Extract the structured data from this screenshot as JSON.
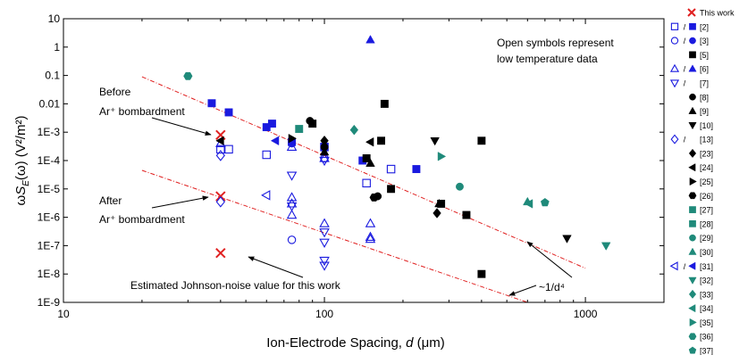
{
  "colors": {
    "blue": "#1a1adf",
    "black": "#000000",
    "teal": "#1f8a7a",
    "red": "#e02020",
    "line": "#e02020"
  },
  "chart_data": {
    "type": "scatter",
    "xlabel": "Ion-Electrode Spacing, d (μm)",
    "ylabel": "ωS_E(ω) (V²/m²)",
    "x_scale": "log",
    "y_scale": "log",
    "xlim": [
      10,
      2000
    ],
    "ylim": [
      1e-09,
      10
    ],
    "x_ticks": [
      10,
      100,
      1000
    ],
    "x_tick_labels": [
      "10",
      "100",
      "1000"
    ],
    "y_ticks": [
      1e-09,
      1e-08,
      1e-07,
      1e-06,
      1e-05,
      0.0001,
      0.001,
      0.01,
      0.1,
      1,
      10
    ],
    "y_tick_labels": [
      "1E-9",
      "1E-8",
      "1E-7",
      "1E-6",
      "1E-5",
      "1E-4",
      "1E-3",
      "0.01",
      "0.1",
      "1",
      "10"
    ],
    "annotations": {
      "before_line1": "Before",
      "before_line2": "Ar⁺ bombardment",
      "after_line1": "After",
      "after_line2": "Ar⁺ bombardment",
      "johnson": "Estimated Johnson-noise value for this work",
      "open_symbols_line1": "Open symbols represent",
      "open_symbols_line2": "low temperature data",
      "slope": "~1/d⁴"
    },
    "fit_lines": [
      {
        "x": [
          20,
          1000
        ],
        "y": [
          0.09,
          1.6e-08
        ]
      },
      {
        "x": [
          20,
          600
        ],
        "y": [
          4.5e-05,
          1e-09
        ]
      }
    ],
    "series": [
      {
        "name": "This work",
        "marker": "x",
        "color": "red",
        "filled": false,
        "points": [
          [
            40,
            0.0008
          ],
          [
            40,
            5.5e-06
          ],
          [
            40,
            5.5e-08
          ]
        ]
      },
      {
        "name": "[2]",
        "marker": "square",
        "color": "blue",
        "filled": true,
        "points": [
          [
            37,
            0.0105
          ],
          [
            43,
            0.005
          ],
          [
            60,
            0.0015
          ],
          [
            63,
            0.002
          ],
          [
            75,
            0.00045
          ],
          [
            100,
            0.0003
          ],
          [
            140,
            0.0001
          ],
          [
            225,
            5e-05
          ]
        ]
      },
      {
        "name": "[2]",
        "marker": "square",
        "color": "blue",
        "filled": false,
        "points": [
          [
            40,
            0.00025
          ],
          [
            43,
            0.00025
          ],
          [
            60,
            0.00016
          ],
          [
            100,
            0.0003
          ],
          [
            145,
            1.6e-05
          ],
          [
            180,
            5e-05
          ]
        ]
      },
      {
        "name": "[3]",
        "marker": "circle",
        "color": "blue",
        "filled": true,
        "points": [
          [
            75,
            0.0004
          ]
        ]
      },
      {
        "name": "[3]",
        "marker": "circle",
        "color": "blue",
        "filled": false,
        "points": [
          [
            75,
            1.6e-07
          ],
          [
            100,
            0.00012
          ]
        ]
      },
      {
        "name": "[5]",
        "marker": "square",
        "color": "black",
        "filled": true,
        "points": [
          [
            90,
            0.002
          ],
          [
            145,
            0.00012
          ],
          [
            165,
            0.0005
          ],
          [
            170,
            0.01
          ],
          [
            180,
            1e-05
          ],
          [
            280,
            3e-06
          ],
          [
            350,
            1.2e-06
          ],
          [
            400,
            0.0005
          ],
          [
            400,
            1e-08
          ]
        ]
      },
      {
        "name": "[6]",
        "marker": "triangle-up",
        "color": "blue",
        "filled": true,
        "points": [
          [
            150,
            1.8
          ]
        ]
      },
      {
        "name": "[6]",
        "marker": "triangle-up",
        "color": "blue",
        "filled": false,
        "points": [
          [
            40,
            0.0004
          ],
          [
            75,
            0.0003
          ],
          [
            75,
            5e-06
          ],
          [
            75,
            3e-06
          ],
          [
            75,
            1.2e-06
          ],
          [
            100,
            0.00012
          ],
          [
            100,
            6e-07
          ],
          [
            150,
            6e-07
          ],
          [
            150,
            2e-07
          ],
          [
            150,
            1.7e-07
          ]
        ]
      },
      {
        "name": "[7]",
        "marker": "triangle-down",
        "color": "blue",
        "filled": false,
        "points": [
          [
            75,
            2.5e-06
          ],
          [
            100,
            1.3e-07
          ],
          [
            100,
            3e-08
          ],
          [
            100,
            2e-08
          ],
          [
            100,
            3e-07
          ],
          [
            100,
            0.0001
          ],
          [
            75,
            3e-05
          ]
        ]
      },
      {
        "name": "[8]",
        "marker": "circle",
        "color": "black",
        "filled": true,
        "points": [
          [
            88,
            0.0025
          ],
          [
            100,
            0.0003
          ],
          [
            145,
            0.00012
          ],
          [
            160,
            5.5e-06
          ]
        ]
      },
      {
        "name": "[9]",
        "marker": "triangle-up",
        "color": "black",
        "filled": true,
        "points": [
          [
            100,
            0.0002
          ],
          [
            150,
            8e-05
          ],
          [
            275,
            3e-06
          ]
        ]
      },
      {
        "name": "[10]",
        "marker": "triangle-down",
        "color": "black",
        "filled": true,
        "points": [
          [
            265,
            0.0005
          ],
          [
            850,
            1.8e-07
          ]
        ]
      },
      {
        "name": "[13]",
        "marker": "diamond",
        "color": "blue",
        "filled": false,
        "points": [
          [
            40,
            0.00015
          ],
          [
            40,
            3.5e-06
          ]
        ]
      },
      {
        "name": "[23]",
        "marker": "diamond",
        "color": "black",
        "filled": true,
        "points": [
          [
            100,
            0.0005
          ],
          [
            270,
            1.4e-06
          ]
        ]
      },
      {
        "name": "[24]",
        "marker": "triangle-left",
        "color": "black",
        "filled": true,
        "points": [
          [
            40,
            0.0005
          ],
          [
            150,
            0.00045
          ]
        ]
      },
      {
        "name": "[25]",
        "marker": "triangle-right",
        "color": "black",
        "filled": true,
        "points": [
          [
            75,
            0.0006
          ]
        ]
      },
      {
        "name": "[26]",
        "marker": "hexagon",
        "color": "black",
        "filled": true,
        "points": [
          [
            155,
            5e-06
          ]
        ]
      },
      {
        "name": "[27]",
        "marker": "square",
        "color": "teal",
        "filled": true,
        "points": [
          [
            80,
            0.0013
          ]
        ]
      },
      {
        "name": "[29]",
        "marker": "circle",
        "color": "teal",
        "filled": true,
        "points": [
          [
            330,
            1.2e-05
          ]
        ]
      },
      {
        "name": "[30]",
        "marker": "triangle-up",
        "color": "teal",
        "filled": true,
        "points": [
          [
            600,
            3.5e-06
          ]
        ]
      },
      {
        "name": "[31]",
        "marker": "triangle-left",
        "color": "blue",
        "filled": true,
        "points": [
          [
            65,
            0.0005
          ]
        ]
      },
      {
        "name": "[31]",
        "marker": "triangle-left",
        "color": "blue",
        "filled": false,
        "points": [
          [
            60,
            6e-06
          ]
        ]
      },
      {
        "name": "[32]",
        "marker": "triangle-down",
        "color": "teal",
        "filled": true,
        "points": [
          [
            1200,
            1e-07
          ]
        ]
      },
      {
        "name": "[33]",
        "marker": "diamond",
        "color": "teal",
        "filled": true,
        "points": [
          [
            130,
            0.0012
          ]
        ]
      },
      {
        "name": "[34]",
        "marker": "triangle-left",
        "color": "teal",
        "filled": true,
        "points": [
          [
            610,
            3e-06
          ]
        ]
      },
      {
        "name": "[35]",
        "marker": "triangle-right",
        "color": "teal",
        "filled": true,
        "points": [
          [
            280,
            0.00014
          ]
        ]
      },
      {
        "name": "[36]",
        "marker": "hexagon",
        "color": "teal",
        "filled": true,
        "points": [
          [
            30,
            0.095
          ]
        ]
      },
      {
        "name": "[37]",
        "marker": "pentagon",
        "color": "teal",
        "filled": true,
        "points": [
          [
            700,
            3.3e-06
          ]
        ]
      }
    ],
    "legend": {
      "placement": "right",
      "entries": [
        {
          "label": "This work",
          "open": "x",
          "color": "red"
        },
        {
          "label": "[2]",
          "open": "square",
          "filled": "square",
          "color": "blue"
        },
        {
          "label": "[3]",
          "open": "circle",
          "filled": "circle",
          "color": "blue"
        },
        {
          "label": "[5]",
          "filled": "square",
          "color": "black"
        },
        {
          "label": "[6]",
          "open": "triangle-up",
          "filled": "triangle-up",
          "color": "blue"
        },
        {
          "label": "[7]",
          "open": "triangle-down",
          "color": "blue"
        },
        {
          "label": "[8]",
          "filled": "circle",
          "color": "black"
        },
        {
          "label": "[9]",
          "filled": "triangle-up",
          "color": "black"
        },
        {
          "label": "[10]",
          "filled": "triangle-down",
          "color": "black"
        },
        {
          "label": "[13]",
          "open": "diamond",
          "color": "blue"
        },
        {
          "label": "[23]",
          "filled": "diamond",
          "color": "black"
        },
        {
          "label": "[24]",
          "filled": "triangle-left",
          "color": "black"
        },
        {
          "label": "[25]",
          "filled": "triangle-right",
          "color": "black"
        },
        {
          "label": "[26]",
          "filled": "hexagon",
          "color": "black"
        },
        {
          "label": "[27]",
          "filled": "square",
          "color": "teal"
        },
        {
          "label": "[28]",
          "filled": "square",
          "color": "teal"
        },
        {
          "label": "[29]",
          "filled": "circle",
          "color": "teal"
        },
        {
          "label": "[30]",
          "filled": "triangle-up",
          "color": "teal"
        },
        {
          "label": "[31]",
          "open": "triangle-left",
          "filled": "triangle-left",
          "color": "blue"
        },
        {
          "label": "[32]",
          "filled": "triangle-down",
          "color": "teal"
        },
        {
          "label": "[33]",
          "filled": "diamond",
          "color": "teal"
        },
        {
          "label": "[34]",
          "filled": "triangle-left",
          "color": "teal"
        },
        {
          "label": "[35]",
          "filled": "triangle-right",
          "color": "teal"
        },
        {
          "label": "[36]",
          "filled": "hexagon",
          "color": "teal"
        },
        {
          "label": "[37]",
          "filled": "pentagon",
          "color": "teal"
        }
      ]
    }
  }
}
